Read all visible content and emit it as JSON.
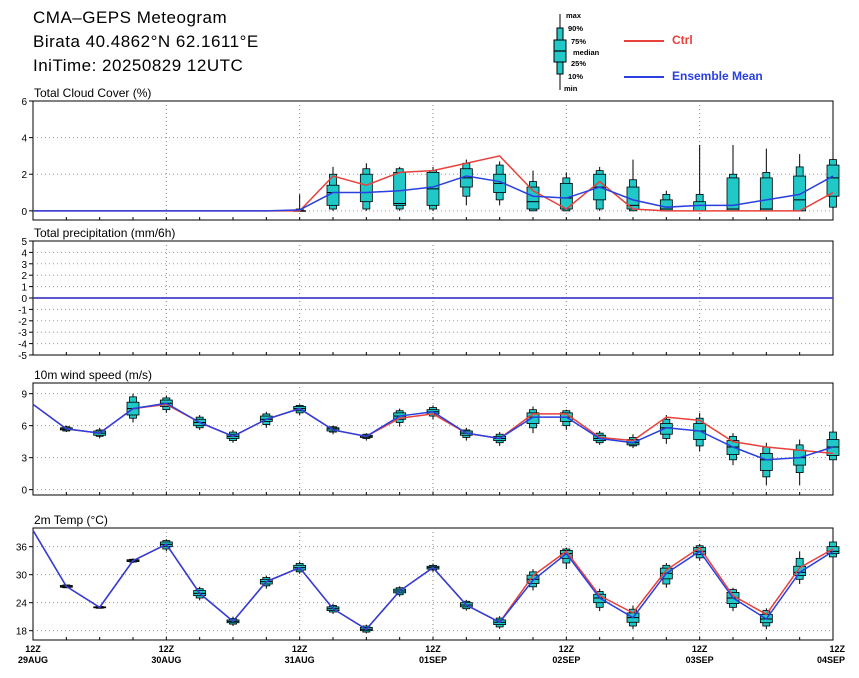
{
  "header": {
    "title": "CMA–GEPS Meteogram",
    "location": "Birata 40.4862°N 62.1611°E",
    "init_time": "IniTime: 20250829 12UTC"
  },
  "legend": {
    "boxplot_labels": [
      "max",
      "90%",
      "75%",
      "median",
      "25%",
      "10%",
      "min"
    ],
    "ctrl_label": "Ctrl",
    "mean_label": "Ensemble Mean",
    "ctrl_color": "#e8413c",
    "mean_color": "#2a3fe0",
    "box_color": "#20c8c8"
  },
  "chart_data": [
    {
      "type": "boxplot-line",
      "title": "Total Cloud Cover (%)",
      "ylim": [
        -0.5,
        6
      ],
      "yticks": [
        0,
        2,
        4,
        6
      ],
      "grid": true,
      "x": [
        0,
        1,
        2,
        3,
        4,
        5,
        6,
        7,
        8,
        9,
        10,
        11,
        12,
        13,
        14,
        15,
        16,
        17,
        18,
        19,
        20,
        21,
        22,
        23,
        24
      ],
      "x_tick_positions": [
        0,
        4,
        8,
        12,
        16,
        20,
        24
      ],
      "x_tick_labels": [
        [
          "12Z",
          "29AUG"
        ],
        [
          "12Z",
          "30AUG"
        ],
        [
          "12Z",
          "31AUG"
        ],
        [
          "12Z",
          "01SEP"
        ],
        [
          "12Z",
          "02SEP"
        ],
        [
          "12Z",
          "03SEP"
        ],
        [
          "12Z",
          "04SEP"
        ]
      ],
      "series": [
        {
          "name": "Ctrl",
          "values": [
            0,
            0,
            0,
            0,
            0,
            0,
            0,
            0,
            0,
            1.9,
            1.4,
            2.1,
            2.2,
            2.6,
            3.0,
            1.1,
            0.1,
            1.6,
            0.1,
            0,
            0,
            0,
            0,
            0,
            1.0
          ]
        },
        {
          "name": "Ensemble Mean",
          "values": [
            0,
            0,
            0,
            0,
            0,
            0,
            0,
            0,
            0.05,
            1.0,
            1.0,
            1.1,
            1.3,
            1.9,
            1.6,
            0.8,
            0.7,
            1.3,
            0.6,
            0.2,
            0.3,
            0.3,
            0.6,
            0.9,
            1.9
          ]
        }
      ],
      "boxes": [
        null,
        null,
        null,
        null,
        null,
        null,
        null,
        null,
        [
          0,
          0,
          0,
          0,
          0,
          0.1,
          0.9
        ],
        [
          0,
          0.1,
          0.3,
          1.0,
          1.4,
          2.0,
          2.4
        ],
        [
          0,
          0.1,
          0.5,
          1.0,
          2.0,
          2.3,
          2.6
        ],
        [
          0,
          0.1,
          0.3,
          0.4,
          2.1,
          2.3,
          2.4
        ],
        [
          0,
          0.1,
          0.3,
          1.2,
          2.1,
          2.2,
          2.4
        ],
        [
          0.3,
          0.8,
          1.3,
          1.8,
          2.3,
          2.6,
          2.8
        ],
        [
          0.3,
          0.6,
          1.0,
          1.5,
          2.0,
          2.5,
          2.7
        ],
        [
          0,
          0,
          0.1,
          0.5,
          1.3,
          1.6,
          2.2
        ],
        [
          0,
          0,
          0.1,
          0.7,
          1.5,
          1.8,
          2.1
        ],
        [
          0,
          0.1,
          0.6,
          1.3,
          2.0,
          2.2,
          2.4
        ],
        [
          0,
          0,
          0.1,
          0.3,
          1.3,
          1.7,
          2.8
        ],
        [
          0,
          0,
          0,
          0.1,
          0.6,
          0.9,
          1.1
        ],
        [
          0,
          0,
          0,
          0,
          0.5,
          0.9,
          3.6
        ],
        [
          0,
          0,
          0,
          0.1,
          1.8,
          2.0,
          3.6
        ],
        [
          0,
          0,
          0,
          0.1,
          1.8,
          2.1,
          3.4
        ],
        [
          0,
          0,
          0,
          0.6,
          1.9,
          2.4,
          3.1
        ],
        [
          0,
          0.2,
          0.8,
          1.8,
          2.5,
          2.8,
          3.2
        ]
      ]
    },
    {
      "type": "boxplot-line",
      "title": "Total precipitation (mm/6h)",
      "ylim": [
        -5,
        5
      ],
      "yticks": [
        -5,
        -4,
        -3,
        -2,
        -1,
        0,
        1,
        2,
        3,
        4,
        5
      ],
      "grid": true,
      "series": [
        {
          "name": "Ctrl",
          "values": [
            0,
            0,
            0,
            0,
            0,
            0,
            0,
            0,
            0,
            0,
            0,
            0,
            0,
            0,
            0,
            0,
            0,
            0,
            0,
            0,
            0,
            0,
            0,
            0,
            0
          ]
        },
        {
          "name": "Ensemble Mean",
          "values": [
            0,
            0,
            0,
            0,
            0,
            0,
            0,
            0,
            0,
            0,
            0,
            0,
            0,
            0,
            0,
            0,
            0,
            0,
            0,
            0,
            0,
            0,
            0,
            0,
            0
          ]
        }
      ],
      "boxes": []
    },
    {
      "type": "boxplot-line",
      "title": "10m wind speed (m/s)",
      "ylim": [
        -0.5,
        10
      ],
      "yticks": [
        0,
        3,
        6,
        9
      ],
      "grid": true,
      "series": [
        {
          "name": "Ctrl",
          "values": [
            8.0,
            5.7,
            5.3,
            7.6,
            8.0,
            6.3,
            5.0,
            6.6,
            7.6,
            5.6,
            5.0,
            6.7,
            7.1,
            5.3,
            4.8,
            7.1,
            7.1,
            4.9,
            4.6,
            6.8,
            6.5,
            4.5,
            4.0,
            3.7,
            3.4
          ]
        },
        {
          "name": "Ensemble Mean",
          "values": [
            8.0,
            5.7,
            5.3,
            7.6,
            8.1,
            6.3,
            5.0,
            6.6,
            7.6,
            5.6,
            5.0,
            6.9,
            7.3,
            5.3,
            4.8,
            6.8,
            6.8,
            4.8,
            4.4,
            5.8,
            5.5,
            4.0,
            2.8,
            3.0,
            4.0
          ]
        }
      ],
      "boxes": [
        null,
        [
          5.4,
          5.5,
          5.6,
          5.7,
          5.8,
          5.9,
          6.0
        ],
        [
          4.8,
          5.0,
          5.1,
          5.3,
          5.5,
          5.6,
          5.8
        ],
        [
          6.3,
          6.7,
          7.0,
          7.6,
          8.2,
          8.7,
          9.0
        ],
        [
          7.2,
          7.5,
          7.8,
          8.1,
          8.4,
          8.6,
          8.8
        ],
        [
          5.6,
          5.8,
          6.0,
          6.3,
          6.6,
          6.8,
          7.0
        ],
        [
          4.4,
          4.6,
          4.8,
          5.0,
          5.2,
          5.4,
          5.6
        ],
        [
          5.8,
          6.1,
          6.4,
          6.6,
          6.9,
          7.1,
          7.3
        ],
        [
          7.0,
          7.2,
          7.4,
          7.6,
          7.8,
          7.9,
          8.0
        ],
        [
          5.2,
          5.4,
          5.5,
          5.7,
          5.8,
          5.9,
          6.0
        ],
        [
          4.6,
          4.8,
          4.9,
          5.0,
          5.1,
          5.2,
          5.3
        ],
        [
          5.9,
          6.3,
          6.6,
          6.9,
          7.2,
          7.4,
          7.6
        ],
        [
          6.6,
          6.9,
          7.1,
          7.3,
          7.5,
          7.7,
          7.9
        ],
        [
          4.6,
          4.9,
          5.1,
          5.3,
          5.5,
          5.6,
          5.8
        ],
        [
          4.1,
          4.4,
          4.6,
          4.8,
          5.0,
          5.2,
          5.4
        ],
        [
          5.3,
          5.8,
          6.2,
          6.8,
          7.2,
          7.5,
          7.8
        ],
        [
          5.6,
          6.0,
          6.4,
          6.8,
          7.2,
          7.4,
          7.5
        ],
        [
          4.2,
          4.4,
          4.6,
          4.8,
          5.1,
          5.3,
          5.5
        ],
        [
          3.9,
          4.1,
          4.2,
          4.4,
          4.7,
          4.9,
          5.2
        ],
        [
          4.3,
          4.8,
          5.2,
          5.8,
          6.2,
          6.6,
          7.0
        ],
        [
          3.6,
          4.1,
          4.7,
          5.5,
          6.2,
          6.7,
          7.2
        ],
        [
          2.3,
          2.8,
          3.3,
          4.0,
          4.6,
          5.0,
          5.3
        ],
        [
          0.4,
          1.2,
          1.8,
          2.8,
          3.4,
          4.0,
          4.4
        ],
        [
          0.4,
          1.6,
          2.3,
          3.0,
          3.7,
          4.2,
          4.7
        ],
        [
          2.4,
          2.8,
          3.2,
          4.0,
          4.7,
          5.4,
          6.0
        ]
      ]
    },
    {
      "type": "boxplot-line",
      "title": "2m Temp (°C)",
      "ylim": [
        16,
        40
      ],
      "yticks": [
        18,
        24,
        30,
        36
      ],
      "grid": true,
      "series": [
        {
          "name": "Ctrl",
          "values": [
            39.5,
            27.5,
            23.0,
            33.0,
            36.5,
            26.0,
            20.0,
            28.5,
            31.5,
            22.7,
            18.3,
            26.5,
            31.5,
            23.5,
            19.8,
            29.8,
            35.0,
            25.5,
            21.8,
            31.0,
            35.8,
            25.5,
            21.5,
            31.5,
            35.5
          ]
        },
        {
          "name": "Ensemble Mean",
          "values": [
            39.5,
            27.5,
            23.0,
            33.0,
            36.5,
            26.0,
            20.0,
            28.5,
            31.5,
            22.7,
            18.3,
            26.5,
            31.5,
            23.5,
            19.8,
            28.8,
            34.5,
            25.0,
            20.8,
            30.3,
            35.0,
            25.0,
            20.5,
            30.5,
            35.0
          ]
        }
      ],
      "boxes": [
        null,
        [
          27.1,
          27.2,
          27.3,
          27.5,
          27.7,
          27.8,
          27.9
        ],
        [
          22.7,
          22.8,
          22.9,
          23.0,
          23.1,
          23.2,
          23.3
        ],
        [
          32.5,
          32.7,
          32.8,
          33.0,
          33.2,
          33.3,
          33.5
        ],
        [
          35.0,
          35.5,
          36.0,
          36.5,
          37.0,
          37.3,
          37.6
        ],
        [
          24.5,
          25.0,
          25.5,
          26.0,
          26.6,
          27.0,
          27.4
        ],
        [
          19.0,
          19.4,
          19.7,
          20.0,
          20.3,
          20.6,
          21.0
        ],
        [
          27.0,
          27.6,
          28.0,
          28.5,
          29.0,
          29.4,
          29.8
        ],
        [
          30.2,
          30.6,
          31.0,
          31.5,
          32.0,
          32.4,
          32.8
        ],
        [
          21.6,
          22.0,
          22.3,
          22.7,
          23.1,
          23.4,
          23.8
        ],
        [
          17.4,
          17.7,
          18.0,
          18.3,
          18.7,
          19.0,
          19.3
        ],
        [
          25.3,
          25.7,
          26.1,
          26.5,
          26.9,
          27.2,
          27.5
        ],
        [
          30.6,
          31.0,
          31.2,
          31.5,
          31.8,
          32.0,
          32.4
        ],
        [
          22.3,
          22.7,
          23.1,
          23.5,
          24.0,
          24.3,
          24.6
        ],
        [
          18.4,
          18.8,
          19.3,
          19.8,
          20.3,
          20.7,
          21.1
        ],
        [
          26.6,
          27.4,
          28.1,
          29.0,
          29.9,
          30.6,
          31.2
        ],
        [
          31.2,
          32.5,
          33.5,
          34.5,
          35.2,
          35.5,
          35.8
        ],
        [
          22.2,
          23.0,
          24.0,
          25.0,
          25.8,
          26.4,
          27.0
        ],
        [
          18.3,
          19.0,
          19.8,
          20.8,
          21.8,
          22.6,
          23.4
        ],
        [
          27.2,
          28.0,
          29.1,
          30.3,
          31.4,
          32.0,
          32.5
        ],
        [
          33.0,
          33.6,
          34.3,
          35.0,
          35.8,
          36.2,
          36.6
        ],
        [
          22.2,
          23.0,
          23.8,
          25.0,
          26.2,
          26.8,
          27.2
        ],
        [
          18.3,
          19.0,
          19.7,
          20.5,
          21.5,
          22.3,
          22.8
        ],
        [
          28.0,
          29.0,
          29.8,
          30.5,
          31.8,
          33.5,
          35.0
        ],
        [
          33.3,
          33.8,
          34.5,
          35.0,
          36.0,
          37.0,
          37.6
        ]
      ]
    }
  ]
}
